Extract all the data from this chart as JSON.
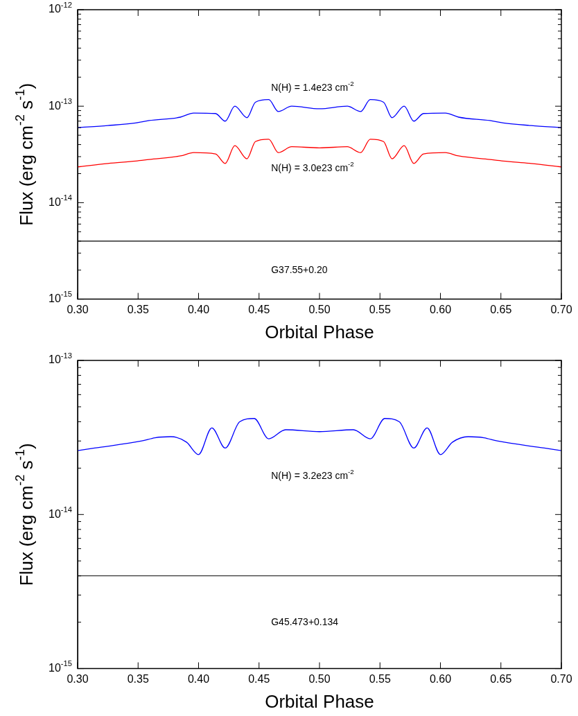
{
  "chart_data": [
    {
      "type": "line",
      "xlabel": "Orbital Phase",
      "ylabel": "Flux (erg cm$^{-2}$ s$^{-1}$)",
      "log": "y",
      "grid": false,
      "legend": false,
      "xlim": [
        0.3,
        0.7
      ],
      "xticks": [
        {
          "value": 0.3,
          "label": "0.30"
        },
        {
          "value": 0.35,
          "label": "0.35"
        },
        {
          "value": 0.4,
          "label": "0.40"
        },
        {
          "value": 0.45,
          "label": "0.45"
        },
        {
          "value": 0.5,
          "label": "0.50"
        },
        {
          "value": 0.55,
          "label": "0.55"
        },
        {
          "value": 0.6,
          "label": "0.60"
        },
        {
          "value": 0.65,
          "label": "0.65"
        },
        {
          "value": 0.7,
          "label": "0.70"
        }
      ],
      "ylim": [
        1e-15,
        1e-12
      ],
      "yticks": [
        {
          "value": 1e-15,
          "label": "10$^{-15}$"
        },
        {
          "value": 2e-15,
          "label": null
        },
        {
          "value": 3e-15,
          "label": null
        },
        {
          "value": 4e-15,
          "label": null
        },
        {
          "value": 5e-15,
          "label": null
        },
        {
          "value": 6e-15,
          "label": null
        },
        {
          "value": 7e-15,
          "label": null
        },
        {
          "value": 8e-15,
          "label": null
        },
        {
          "value": 9e-15,
          "label": null
        },
        {
          "value": 1e-14,
          "label": "10$^{-14}$"
        },
        {
          "value": 2e-14,
          "label": null
        },
        {
          "value": 3e-14,
          "label": null
        },
        {
          "value": 4e-14,
          "label": null
        },
        {
          "value": 5e-14,
          "label": null
        },
        {
          "value": 6e-14,
          "label": null
        },
        {
          "value": 7e-14,
          "label": null
        },
        {
          "value": 8e-14,
          "label": null
        },
        {
          "value": 9e-14,
          "label": null
        },
        {
          "value": 1e-13,
          "label": "10$^{-13}$"
        },
        {
          "value": 2e-13,
          "label": null
        },
        {
          "value": 3e-13,
          "label": null
        },
        {
          "value": 4e-13,
          "label": null
        },
        {
          "value": 5e-13,
          "label": null
        },
        {
          "value": 6e-13,
          "label": null
        },
        {
          "value": 7e-13,
          "label": null
        },
        {
          "value": 8e-13,
          "label": null
        },
        {
          "value": 9e-13,
          "label": null
        },
        {
          "value": 1e-12,
          "label": "10$^{-12}$"
        }
      ],
      "series": [
        {
          "name": "N(H) = 1.4e23 cm$^{-2}$",
          "color": "#0000ff",
          "x": [
            0.3,
            0.325,
            0.348,
            0.359,
            0.385,
            0.396,
            0.414,
            0.422,
            0.43,
            0.44,
            0.447,
            0.458,
            0.466,
            0.477,
            0.5,
            0.523,
            0.534,
            0.542,
            0.553,
            0.56,
            0.57,
            0.578,
            0.586,
            0.604,
            0.615,
            0.641,
            0.652,
            0.675,
            0.7
          ],
          "values": [
            6e-14,
            6.3e-14,
            6.7e-14,
            7.1e-14,
            7.7e-14,
            8.5e-14,
            8.4e-14,
            7e-14,
            1e-13,
            7.6e-14,
            1.1e-13,
            1.17e-13,
            8.8e-14,
            1e-13,
            9.4e-14,
            1e-13,
            8.8e-14,
            1.17e-13,
            1.1e-13,
            7.6e-14,
            1e-13,
            7e-14,
            8.4e-14,
            8.5e-14,
            7.7e-14,
            7.1e-14,
            6.7e-14,
            6.3e-14,
            6e-14
          ]
        },
        {
          "name": "N(H) = 3.0e23 cm$^{-2}$",
          "color": "#ff0000",
          "x": [
            0.3,
            0.325,
            0.348,
            0.359,
            0.385,
            0.396,
            0.414,
            0.422,
            0.43,
            0.44,
            0.447,
            0.458,
            0.466,
            0.477,
            0.5,
            0.523,
            0.534,
            0.542,
            0.553,
            0.56,
            0.57,
            0.578,
            0.586,
            0.604,
            0.615,
            0.641,
            0.652,
            0.675,
            0.7
          ],
          "values": [
            2.35e-14,
            2.55e-14,
            2.7e-14,
            2.8e-14,
            3.05e-14,
            3.3e-14,
            3.2e-14,
            2.55e-14,
            3.9e-14,
            2.85e-14,
            4.3e-14,
            4.55e-14,
            3.3e-14,
            3.8e-14,
            3.7e-14,
            3.8e-14,
            3.3e-14,
            4.55e-14,
            4.3e-14,
            2.85e-14,
            3.9e-14,
            2.55e-14,
            3.2e-14,
            3.3e-14,
            3.05e-14,
            2.8e-14,
            2.7e-14,
            2.55e-14,
            2.35e-14
          ]
        }
      ],
      "ref_lines": [
        {
          "axis": "y",
          "value": 4e-15,
          "label": "G37.55+0.20",
          "color": "#000000"
        }
      ]
    },
    {
      "type": "line",
      "xlabel": "Orbital Phase",
      "ylabel": "Flux (erg cm$^{-2}$ s$^{-1}$)",
      "log": "y",
      "grid": false,
      "legend": false,
      "xlim": [
        0.3,
        0.7
      ],
      "xticks": [
        {
          "value": 0.3,
          "label": "0.30"
        },
        {
          "value": 0.35,
          "label": "0.35"
        },
        {
          "value": 0.4,
          "label": "0.40"
        },
        {
          "value": 0.45,
          "label": "0.45"
        },
        {
          "value": 0.5,
          "label": "0.50"
        },
        {
          "value": 0.55,
          "label": "0.55"
        },
        {
          "value": 0.6,
          "label": "0.60"
        },
        {
          "value": 0.65,
          "label": "0.65"
        },
        {
          "value": 0.7,
          "label": "0.70"
        }
      ],
      "ylim": [
        1e-15,
        1e-13
      ],
      "yticks": [
        {
          "value": 1e-15,
          "label": "10$^{-15}$"
        },
        {
          "value": 2e-15,
          "label": null
        },
        {
          "value": 3e-15,
          "label": null
        },
        {
          "value": 4e-15,
          "label": null
        },
        {
          "value": 5e-15,
          "label": null
        },
        {
          "value": 6e-15,
          "label": null
        },
        {
          "value": 7e-15,
          "label": null
        },
        {
          "value": 8e-15,
          "label": null
        },
        {
          "value": 9e-15,
          "label": null
        },
        {
          "value": 1e-14,
          "label": "10$^{-14}$"
        },
        {
          "value": 2e-14,
          "label": null
        },
        {
          "value": 3e-14,
          "label": null
        },
        {
          "value": 4e-14,
          "label": null
        },
        {
          "value": 5e-14,
          "label": null
        },
        {
          "value": 6e-14,
          "label": null
        },
        {
          "value": 7e-14,
          "label": null
        },
        {
          "value": 8e-14,
          "label": null
        },
        {
          "value": 9e-14,
          "label": null
        },
        {
          "value": 1e-13,
          "label": "10$^{-13}$"
        }
      ],
      "series": [
        {
          "color": "#0000ff",
          "x": [
            0.3,
            0.314,
            0.353,
            0.364,
            0.377,
            0.39,
            0.4,
            0.411,
            0.422,
            0.434,
            0.446,
            0.458,
            0.472,
            0.5,
            0.528,
            0.542,
            0.554,
            0.566,
            0.578,
            0.589,
            0.6,
            0.61,
            0.623,
            0.636,
            0.647,
            0.686,
            0.7
          ],
          "values": [
            2.6e-14,
            2.7e-14,
            3e-14,
            3.15e-14,
            3.2e-14,
            2.95e-14,
            2.45e-14,
            3.65e-14,
            2.7e-14,
            4e-14,
            4.2e-14,
            3.1e-14,
            3.55e-14,
            3.45e-14,
            3.55e-14,
            3.1e-14,
            4.2e-14,
            4e-14,
            2.7e-14,
            3.65e-14,
            2.45e-14,
            2.95e-14,
            3.2e-14,
            3.15e-14,
            3e-14,
            2.7e-14,
            2.6e-14
          ]
        }
      ],
      "annotations": [
        "N(H) = 3.2e23 cm$^{-2}$"
      ],
      "ref_lines": [
        {
          "axis": "y",
          "value": 4e-15,
          "label": "G45.473+0.134",
          "color": "#000000"
        }
      ]
    }
  ]
}
